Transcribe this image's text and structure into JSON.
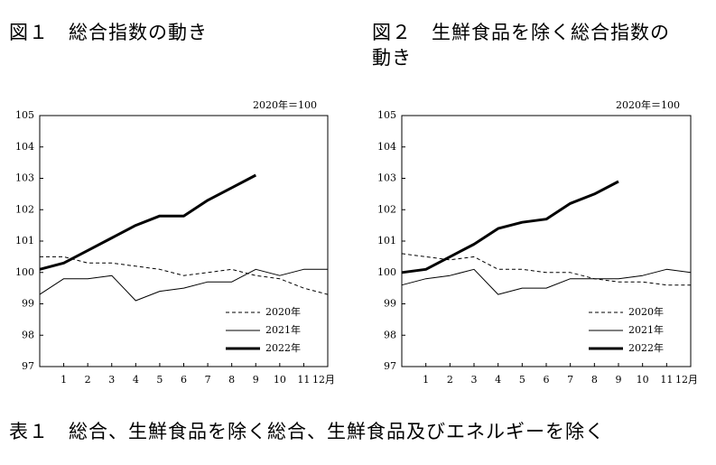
{
  "chart_data": [
    {
      "type": "line",
      "title": "図１　総合指数の動き",
      "annotation": "2020年＝100",
      "xlim": [
        0,
        12
      ],
      "xticks": [
        1,
        2,
        3,
        4,
        5,
        6,
        7,
        8,
        9,
        10,
        11,
        {
          "value": 12,
          "label": "12月"
        }
      ],
      "ylim": [
        97,
        105
      ],
      "yticks": [
        97,
        98,
        99,
        100,
        101,
        102,
        103,
        104,
        105
      ],
      "grid": false,
      "legend": "lower right",
      "series": [
        {
          "name": "2020年",
          "color": "#000000",
          "linestyle": "dashed",
          "linewidth": 1,
          "x": [
            0,
            1,
            2,
            3,
            4,
            5,
            6,
            7,
            8,
            9,
            10,
            11,
            12
          ],
          "values": [
            100.5,
            100.5,
            100.3,
            100.3,
            100.2,
            100.1,
            99.9,
            100.0,
            100.1,
            99.9,
            99.8,
            99.5,
            99.3
          ]
        },
        {
          "name": "2021年",
          "color": "#000000",
          "linestyle": "solid",
          "linewidth": 1,
          "x": [
            0,
            1,
            2,
            3,
            4,
            5,
            6,
            7,
            8,
            9,
            10,
            11,
            12
          ],
          "values": [
            99.3,
            99.8,
            99.8,
            99.9,
            99.1,
            99.4,
            99.5,
            99.7,
            99.7,
            100.1,
            99.9,
            100.1,
            100.1
          ]
        },
        {
          "name": "2022年",
          "color": "#000000",
          "linestyle": "solid",
          "linewidth": 3,
          "x": [
            0,
            1,
            2,
            3,
            4,
            5,
            6,
            7,
            8,
            9
          ],
          "values": [
            100.1,
            100.3,
            100.7,
            101.1,
            101.5,
            101.8,
            101.8,
            102.3,
            102.7,
            103.1
          ]
        }
      ]
    },
    {
      "type": "line",
      "title": "図２　生鮮食品を除く総合指数の動き",
      "annotation": "2020年＝100",
      "xlim": [
        0,
        12
      ],
      "xticks": [
        1,
        2,
        3,
        4,
        5,
        6,
        7,
        8,
        9,
        10,
        11,
        {
          "value": 12,
          "label": "12月"
        }
      ],
      "ylim": [
        97,
        105
      ],
      "yticks": [
        97,
        98,
        99,
        100,
        101,
        102,
        103,
        104,
        105
      ],
      "grid": false,
      "legend": "lower right",
      "series": [
        {
          "name": "2020年",
          "color": "#000000",
          "linestyle": "dashed",
          "linewidth": 1,
          "x": [
            0,
            1,
            2,
            3,
            4,
            5,
            6,
            7,
            8,
            9,
            10,
            11,
            12
          ],
          "values": [
            100.6,
            100.5,
            100.4,
            100.5,
            100.1,
            100.1,
            100.0,
            100.0,
            99.8,
            99.7,
            99.7,
            99.6,
            99.6
          ]
        },
        {
          "name": "2021年",
          "color": "#000000",
          "linestyle": "solid",
          "linewidth": 1,
          "x": [
            0,
            1,
            2,
            3,
            4,
            5,
            6,
            7,
            8,
            9,
            10,
            11,
            12
          ],
          "values": [
            99.6,
            99.8,
            99.9,
            100.1,
            99.3,
            99.5,
            99.5,
            99.8,
            99.8,
            99.8,
            99.9,
            100.1,
            100.0
          ]
        },
        {
          "name": "2022年",
          "color": "#000000",
          "linestyle": "solid",
          "linewidth": 3,
          "x": [
            0,
            1,
            2,
            3,
            4,
            5,
            6,
            7,
            8,
            9
          ],
          "values": [
            100.0,
            100.1,
            100.5,
            100.9,
            101.4,
            101.6,
            101.7,
            102.2,
            102.5,
            102.9
          ]
        }
      ]
    }
  ],
  "footer": "表１　総合、生鮮食品を除く総合、生鮮食品及びエネルギーを除く"
}
